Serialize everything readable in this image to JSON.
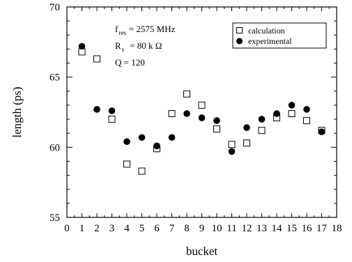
{
  "chart_data": {
    "type": "scatter",
    "xlabel": "bucket",
    "ylabel": "length (ps)",
    "xlim": [
      0,
      18
    ],
    "ylim": [
      55,
      70
    ],
    "xticks": [
      "0",
      "1",
      "2",
      "3",
      "4",
      "5",
      "6",
      "7",
      "8",
      "9",
      "10",
      "11",
      "12",
      "13",
      "14",
      "15",
      "16",
      "17",
      "18"
    ],
    "yticks": [
      "55",
      "60",
      "65",
      "70"
    ],
    "grid": false,
    "legend_position": "top-right",
    "annotations": {
      "line1_main": "f",
      "line1_sub": "res",
      "line1_rest": "= 2575 MHz",
      "line2_main": "R",
      "line2_sub": "s",
      "line2_rest": "= 80 k Ω",
      "line3": "Q = 120"
    },
    "series": [
      {
        "name": "calculation",
        "marker": "open-square",
        "color": "#000000",
        "x": [
          1,
          2,
          3,
          4,
          5,
          6,
          7,
          8,
          9,
          10,
          11,
          12,
          13,
          14,
          15,
          16,
          17
        ],
        "y": [
          66.8,
          66.3,
          62.0,
          58.8,
          58.3,
          59.9,
          62.4,
          63.8,
          63.0,
          61.3,
          60.2,
          60.3,
          61.2,
          62.1,
          62.4,
          61.9,
          61.2
        ]
      },
      {
        "name": "experimental",
        "marker": "filled-circle",
        "color": "#000000",
        "x": [
          1,
          2,
          3,
          4,
          5,
          6,
          7,
          8,
          9,
          10,
          11,
          12,
          13,
          14,
          15,
          16,
          17
        ],
        "y": [
          67.2,
          62.7,
          62.6,
          60.4,
          60.7,
          60.1,
          60.7,
          62.4,
          62.1,
          61.9,
          59.7,
          61.4,
          62.0,
          62.4,
          63.0,
          62.7,
          61.1
        ]
      }
    ]
  }
}
